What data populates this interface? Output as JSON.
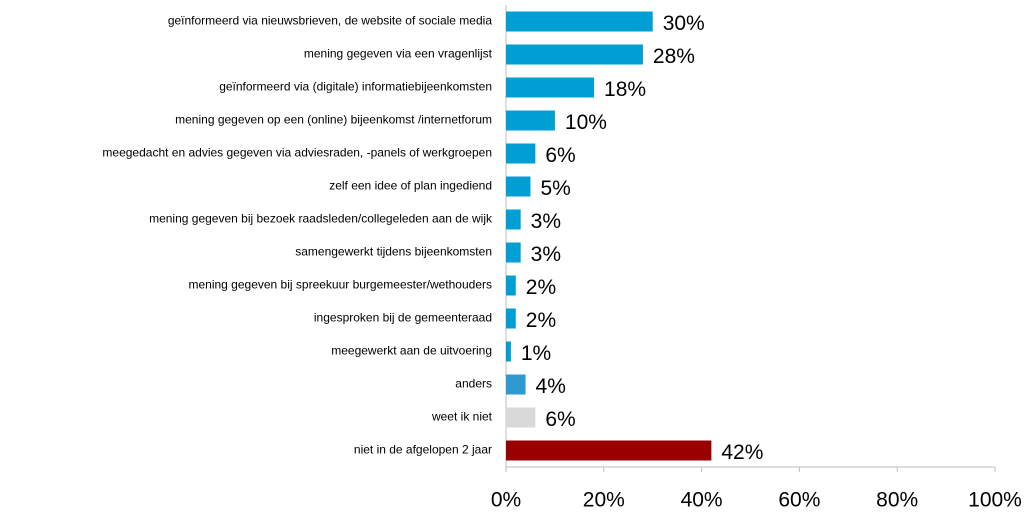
{
  "chart_data": {
    "type": "barh",
    "categories": [
      "geïnformeerd via nieuwsbrieven, de website of sociale media",
      "mening gegeven via een vragenlijst",
      "geïnformeerd via (digitale) informatiebijeenkomsten",
      "mening gegeven op een (online) bijeenkomst /internetforum",
      "meegedacht en advies gegeven via adviesraden, -panels of werkgroepen",
      "zelf een idee of plan ingediend",
      "mening gegeven bij bezoek  raadsleden/collegeleden aan de wijk",
      "samengewerkt tijdens bijeenkomsten",
      "mening gegeven bij spreekuur burgemeester/wethouders",
      "ingesproken bij de gemeenteraad",
      "meegewerkt aan de uitvoering",
      "anders",
      "weet ik niet",
      "niet in de afgelopen 2 jaar"
    ],
    "values": [
      30,
      28,
      18,
      10,
      6,
      5,
      3,
      3,
      2,
      2,
      1,
      4,
      6,
      42
    ],
    "value_labels": [
      "30%",
      "28%",
      "18%",
      "10%",
      "6%",
      "5%",
      "3%",
      "3%",
      "2%",
      "2%",
      "1%",
      "4%",
      "6%",
      "42%"
    ],
    "colors": [
      "#009fd3",
      "#009fd3",
      "#009fd3",
      "#009fd3",
      "#009fd3",
      "#009fd3",
      "#009fd3",
      "#009fd3",
      "#009fd3",
      "#009fd3",
      "#009fd3",
      "#2e9ad0",
      "#d9d9d9",
      "#990000"
    ],
    "xlim": [
      0,
      100
    ],
    "xticks": [
      {
        "value": 0,
        "label": "0%"
      },
      {
        "value": 20,
        "label": "20%"
      },
      {
        "value": 40,
        "label": "40%"
      },
      {
        "value": 60,
        "label": "60%"
      },
      {
        "value": 80,
        "label": "80%"
      },
      {
        "value": 100,
        "label": "100%"
      }
    ]
  }
}
